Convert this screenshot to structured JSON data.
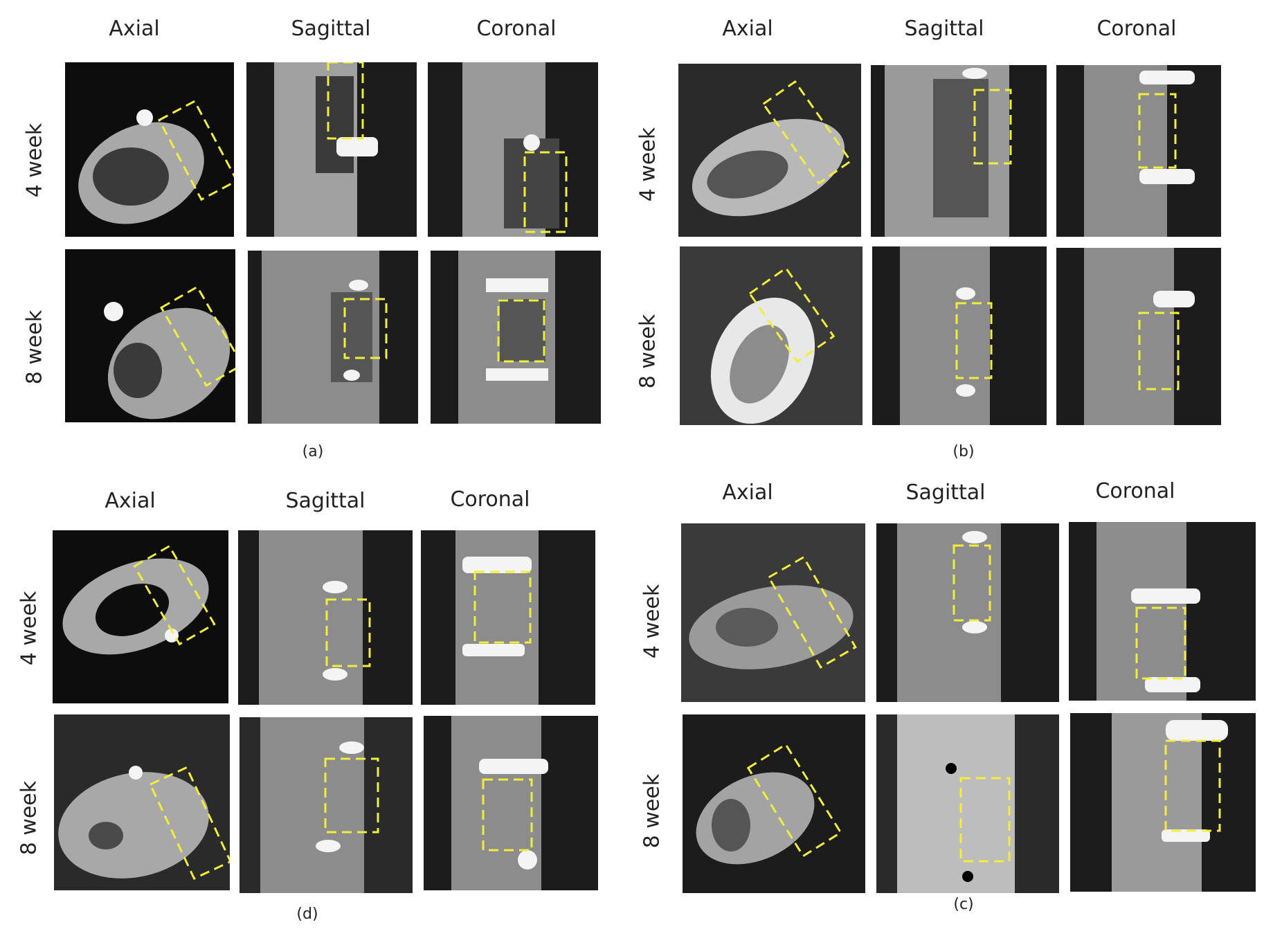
{
  "figure": {
    "panels": [
      {
        "id": "a",
        "caption": "(a)",
        "columns": [
          "Axial",
          "Sagittal",
          "Coronal"
        ],
        "rows": [
          "4 week",
          "8 week"
        ]
      },
      {
        "id": "b",
        "caption": "(b)",
        "columns": [
          "Axial",
          "Sagittal",
          "Coronal"
        ],
        "rows": [
          "4 week",
          "8 week"
        ]
      },
      {
        "id": "d",
        "caption": "(d)",
        "columns": [
          "Axial",
          "Sagittal",
          "Coronal"
        ],
        "rows": [
          "4 week",
          "8 week"
        ]
      },
      {
        "id": "c",
        "caption": "(c)",
        "columns": [
          "Axial",
          "Sagittal",
          "Coronal"
        ],
        "rows": [
          "4 week",
          "8 week"
        ]
      }
    ],
    "colors": {
      "roi_box": "#f2ee3a",
      "bone": "#b8b8b8",
      "background": "#141414",
      "implant": "#f4f4f4"
    }
  }
}
